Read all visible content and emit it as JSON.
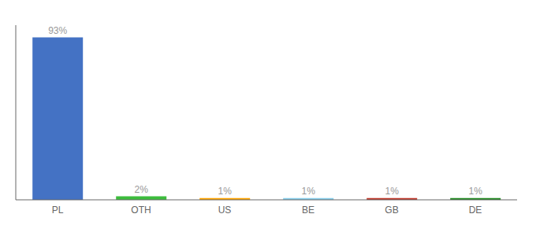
{
  "chart_data": {
    "type": "bar",
    "categories": [
      "PL",
      "OTH",
      "US",
      "BE",
      "GB",
      "DE"
    ],
    "values": [
      93,
      2,
      1,
      1,
      1,
      1
    ],
    "value_labels": [
      "93%",
      "2%",
      "1%",
      "1%",
      "1%",
      "1%"
    ],
    "data_labels": true,
    "colors": [
      "#4472C4",
      "#3DBD3D",
      "#FFA500",
      "#87CEEB",
      "#C0392B",
      "#228B22"
    ],
    "ylim": [
      0,
      100
    ],
    "grid": false,
    "tick_labels": "x"
  }
}
